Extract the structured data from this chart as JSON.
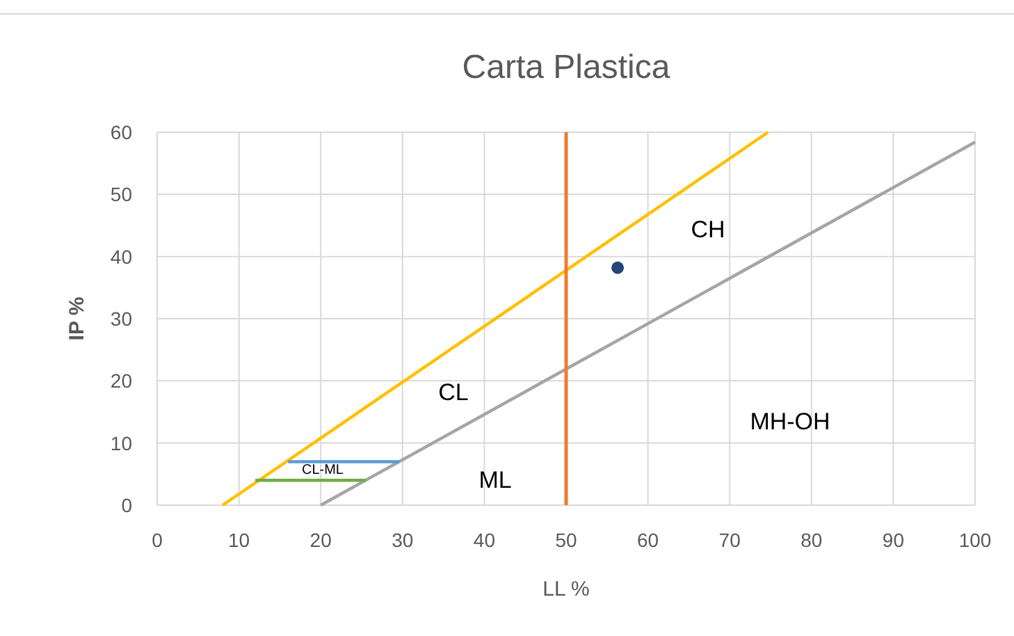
{
  "chart_data": {
    "type": "line",
    "title": "Carta Plastica",
    "xlabel": "LL %",
    "ylabel": "IP %",
    "xlim": [
      0,
      100
    ],
    "ylim": [
      0,
      60
    ],
    "xticks": [
      0,
      10,
      20,
      30,
      40,
      50,
      60,
      70,
      80,
      90,
      100
    ],
    "yticks": [
      0,
      10,
      20,
      30,
      40,
      50,
      60
    ],
    "grid": true,
    "marker": "none",
    "series": [
      {
        "color": "#ffc000",
        "x": [
          8,
          74.7
        ],
        "values": [
          0,
          60
        ]
      },
      {
        "color": "#a5a5a5",
        "x": [
          20,
          100
        ],
        "values": [
          0,
          58.4
        ]
      },
      {
        "color": "#5b9bd5",
        "x": [
          16,
          29.6
        ],
        "values": [
          7,
          7
        ]
      },
      {
        "color": "#70ad47",
        "x": [
          12,
          25.5
        ],
        "values": [
          4,
          4
        ]
      },
      {
        "type": "scatter",
        "marker": "circle",
        "color": "#264478",
        "x": [
          56.3
        ],
        "values": [
          38.2
        ]
      }
    ],
    "ref_lines": [
      {
        "axis": "x",
        "value": 50,
        "color": "#ed7d31"
      }
    ],
    "annotations": [
      "CH",
      "CL",
      "ML",
      "MH-OH",
      "CL-ML"
    ]
  }
}
